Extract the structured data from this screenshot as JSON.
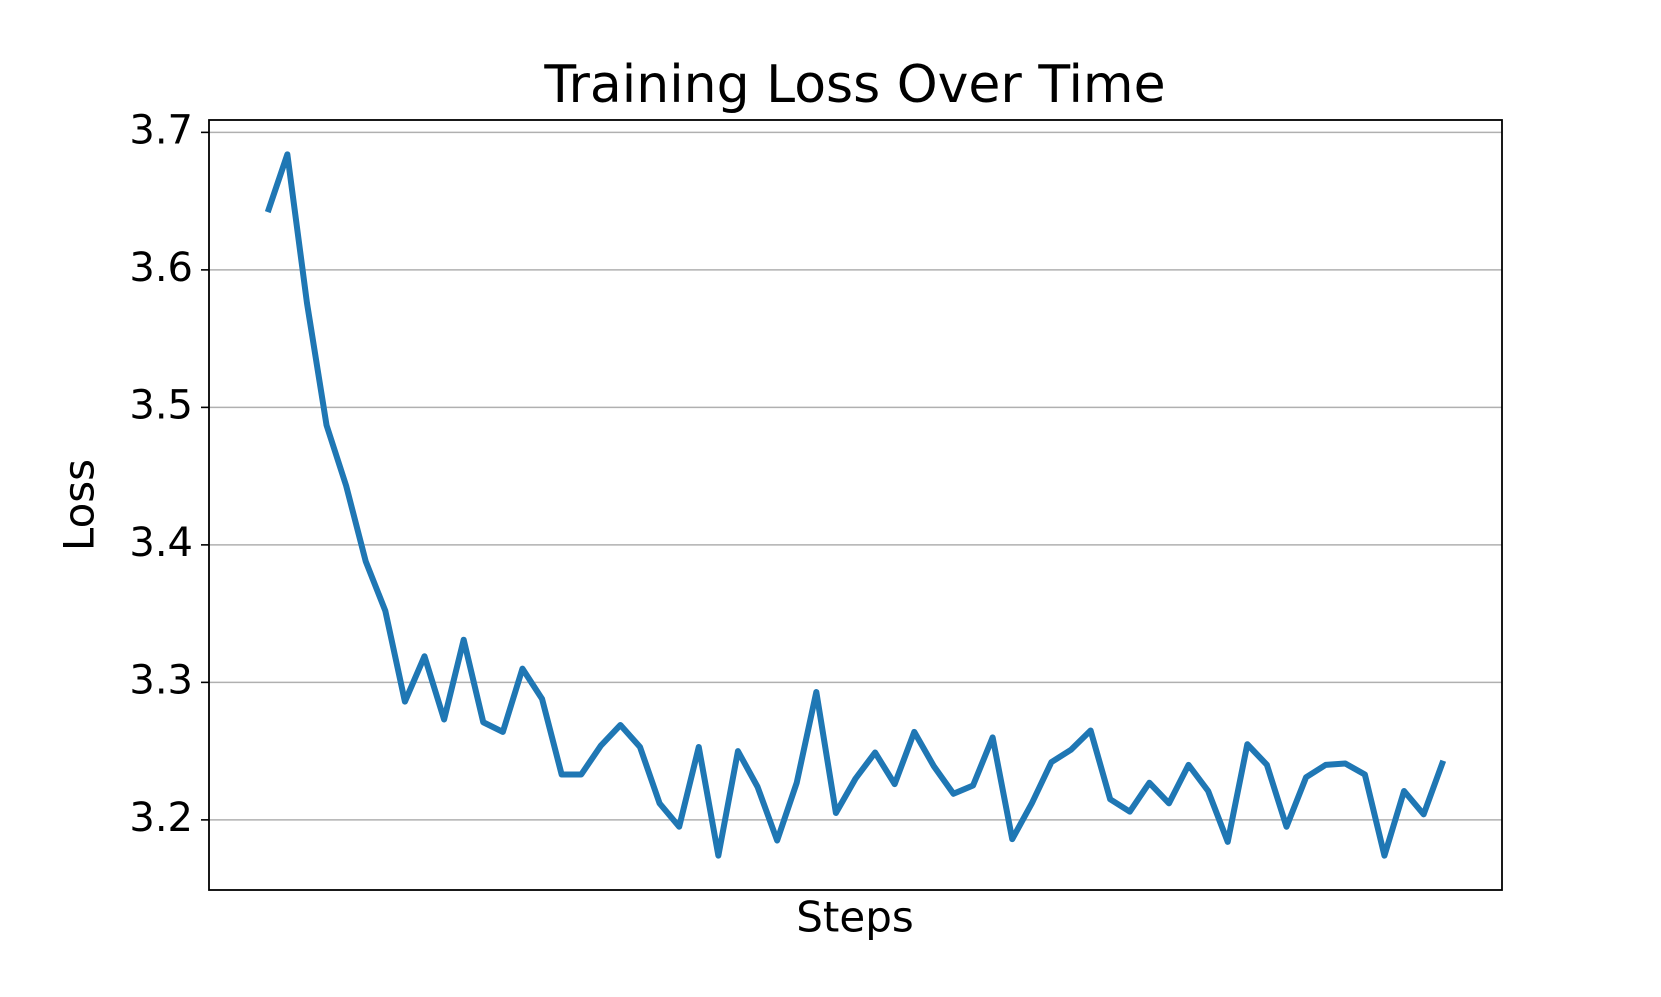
{
  "chart_data": {
    "type": "line",
    "title": "Training Loss Over Time",
    "x_label": "Steps",
    "y_label": "Loss",
    "series": [
      {
        "name": "Loss",
        "color": "#1f77b4",
        "values": [
          3.642,
          3.684,
          3.576,
          3.487,
          3.443,
          3.388,
          3.352,
          3.286,
          3.319,
          3.273,
          3.331,
          3.271,
          3.264,
          3.31,
          3.288,
          3.233,
          3.233,
          3.254,
          3.269,
          3.253,
          3.212,
          3.195,
          3.253,
          3.174,
          3.25,
          3.224,
          3.185,
          3.227,
          3.293,
          3.205,
          3.23,
          3.249,
          3.226,
          3.264,
          3.239,
          3.219,
          3.225,
          3.26,
          3.186,
          3.212,
          3.242,
          3.251,
          3.265,
          3.215,
          3.206,
          3.227,
          3.212,
          3.24,
          3.221,
          3.184,
          3.255,
          3.24,
          3.195,
          3.231,
          3.24,
          3.241,
          3.233,
          3.174,
          3.221,
          3.204,
          3.243
        ]
      }
    ],
    "ylim": [
      3.149,
      3.709
    ],
    "yticks": [
      3.2,
      3.3,
      3.4,
      3.5,
      3.6,
      3.7
    ],
    "grid": true
  }
}
